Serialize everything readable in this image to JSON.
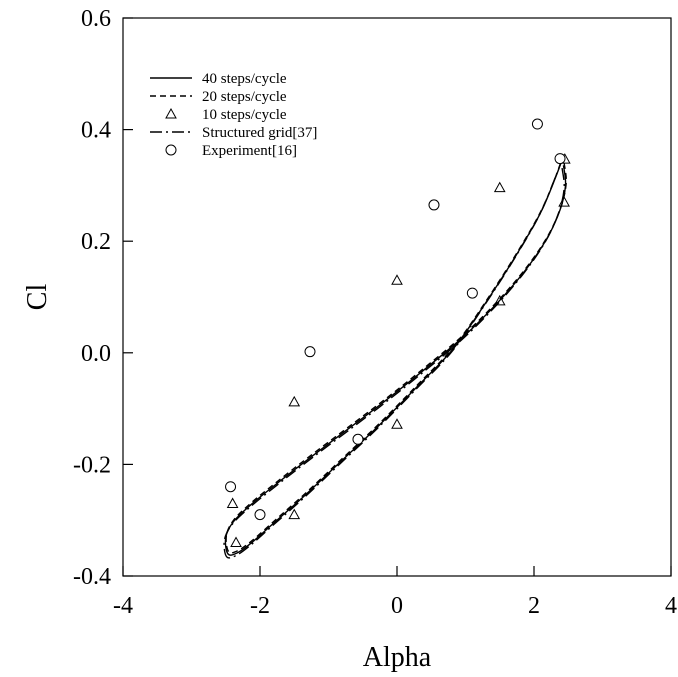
{
  "chart_data": {
    "type": "line",
    "xlabel": "Alpha",
    "ylabel": "Cl",
    "xlim": [
      -4,
      4
    ],
    "ylim": [
      -0.4,
      0.6
    ],
    "xticks": [
      "-4",
      "-2",
      "0",
      "2",
      "4"
    ],
    "yticks": [
      "-0.4",
      "-0.2",
      "0.0",
      "0.2",
      "0.4",
      "0.6"
    ],
    "grid": false,
    "legend_position": "top-left",
    "series": [
      {
        "name": "40 steps/cycle",
        "style": "solid",
        "x": [
          2.43,
          2.46,
          2.38,
          2.19,
          1.88,
          1.47,
          0.98,
          0.42,
          -0.16,
          -0.74,
          -1.28,
          -1.75,
          -2.13,
          -2.39,
          -2.5,
          -2.47,
          -2.34,
          -2.12,
          -1.78,
          -1.34,
          -0.83,
          -0.27,
          0.3,
          0.84,
          1.34,
          1.77,
          2.1,
          2.32,
          2.43
        ],
        "y": [
          0.336,
          0.3,
          0.256,
          0.205,
          0.149,
          0.09,
          0.03,
          -0.028,
          -0.085,
          -0.139,
          -0.189,
          -0.234,
          -0.272,
          -0.303,
          -0.331,
          -0.36,
          -0.359,
          -0.34,
          -0.303,
          -0.255,
          -0.196,
          -0.131,
          -0.06,
          0.01,
          0.098,
          0.181,
          0.252,
          0.316,
          0.353
        ]
      },
      {
        "name": "20 steps/cycle",
        "style": "dashed",
        "x": [
          2.44,
          2.47,
          2.39,
          2.2,
          1.89,
          1.48,
          0.99,
          0.43,
          -0.15,
          -0.73,
          -1.27,
          -1.74,
          -2.12,
          -2.38,
          -2.49,
          -2.46,
          -2.33,
          -2.11,
          -1.77,
          -1.33,
          -0.82,
          -0.26,
          0.31,
          0.85,
          1.35,
          1.78,
          2.11,
          2.33,
          2.44
        ],
        "y": [
          0.34,
          0.304,
          0.26,
          0.209,
          0.153,
          0.094,
          0.034,
          -0.024,
          -0.081,
          -0.135,
          -0.185,
          -0.23,
          -0.268,
          -0.299,
          -0.327,
          -0.356,
          -0.355,
          -0.336,
          -0.299,
          -0.251,
          -0.192,
          -0.127,
          -0.056,
          0.014,
          0.102,
          0.185,
          0.256,
          0.32,
          0.357
        ]
      },
      {
        "name": "10 steps/cycle",
        "style": "markers",
        "marker": "triangle",
        "x": [
          2.44,
          1.5,
          0.0,
          -1.5,
          -2.4,
          -2.35,
          -1.5,
          0.0,
          1.5,
          2.45
        ],
        "y": [
          0.27,
          0.296,
          0.13,
          -0.088,
          -0.27,
          -0.34,
          -0.29,
          -0.128,
          0.093,
          0.347
        ]
      },
      {
        "name": "Structured grid[37]",
        "style": "dashdot",
        "x": [
          2.41,
          2.44,
          2.36,
          2.17,
          1.86,
          1.45,
          0.96,
          0.4,
          -0.18,
          -0.76,
          -1.3,
          -1.77,
          -2.15,
          -2.41,
          -2.52,
          -2.49,
          -2.36,
          -2.14,
          -1.8,
          -1.36,
          -0.85,
          -0.29,
          0.28,
          0.82,
          1.32,
          1.75,
          2.08,
          2.3,
          2.41
        ],
        "y": [
          0.331,
          0.295,
          0.251,
          0.2,
          0.144,
          0.085,
          0.025,
          -0.033,
          -0.09,
          -0.144,
          -0.194,
          -0.239,
          -0.277,
          -0.308,
          -0.336,
          -0.365,
          -0.364,
          -0.345,
          -0.308,
          -0.26,
          -0.201,
          -0.136,
          -0.065,
          0.005,
          0.093,
          0.176,
          0.247,
          0.311,
          0.348
        ]
      },
      {
        "name": "Experiment[16]",
        "style": "markers",
        "marker": "circle",
        "x": [
          2.05,
          2.38,
          0.54,
          1.1,
          -1.27,
          -0.57,
          -2.43,
          -2.0
        ],
        "y": [
          0.41,
          0.348,
          0.265,
          0.107,
          0.002,
          -0.155,
          -0.24,
          -0.29
        ]
      }
    ]
  }
}
